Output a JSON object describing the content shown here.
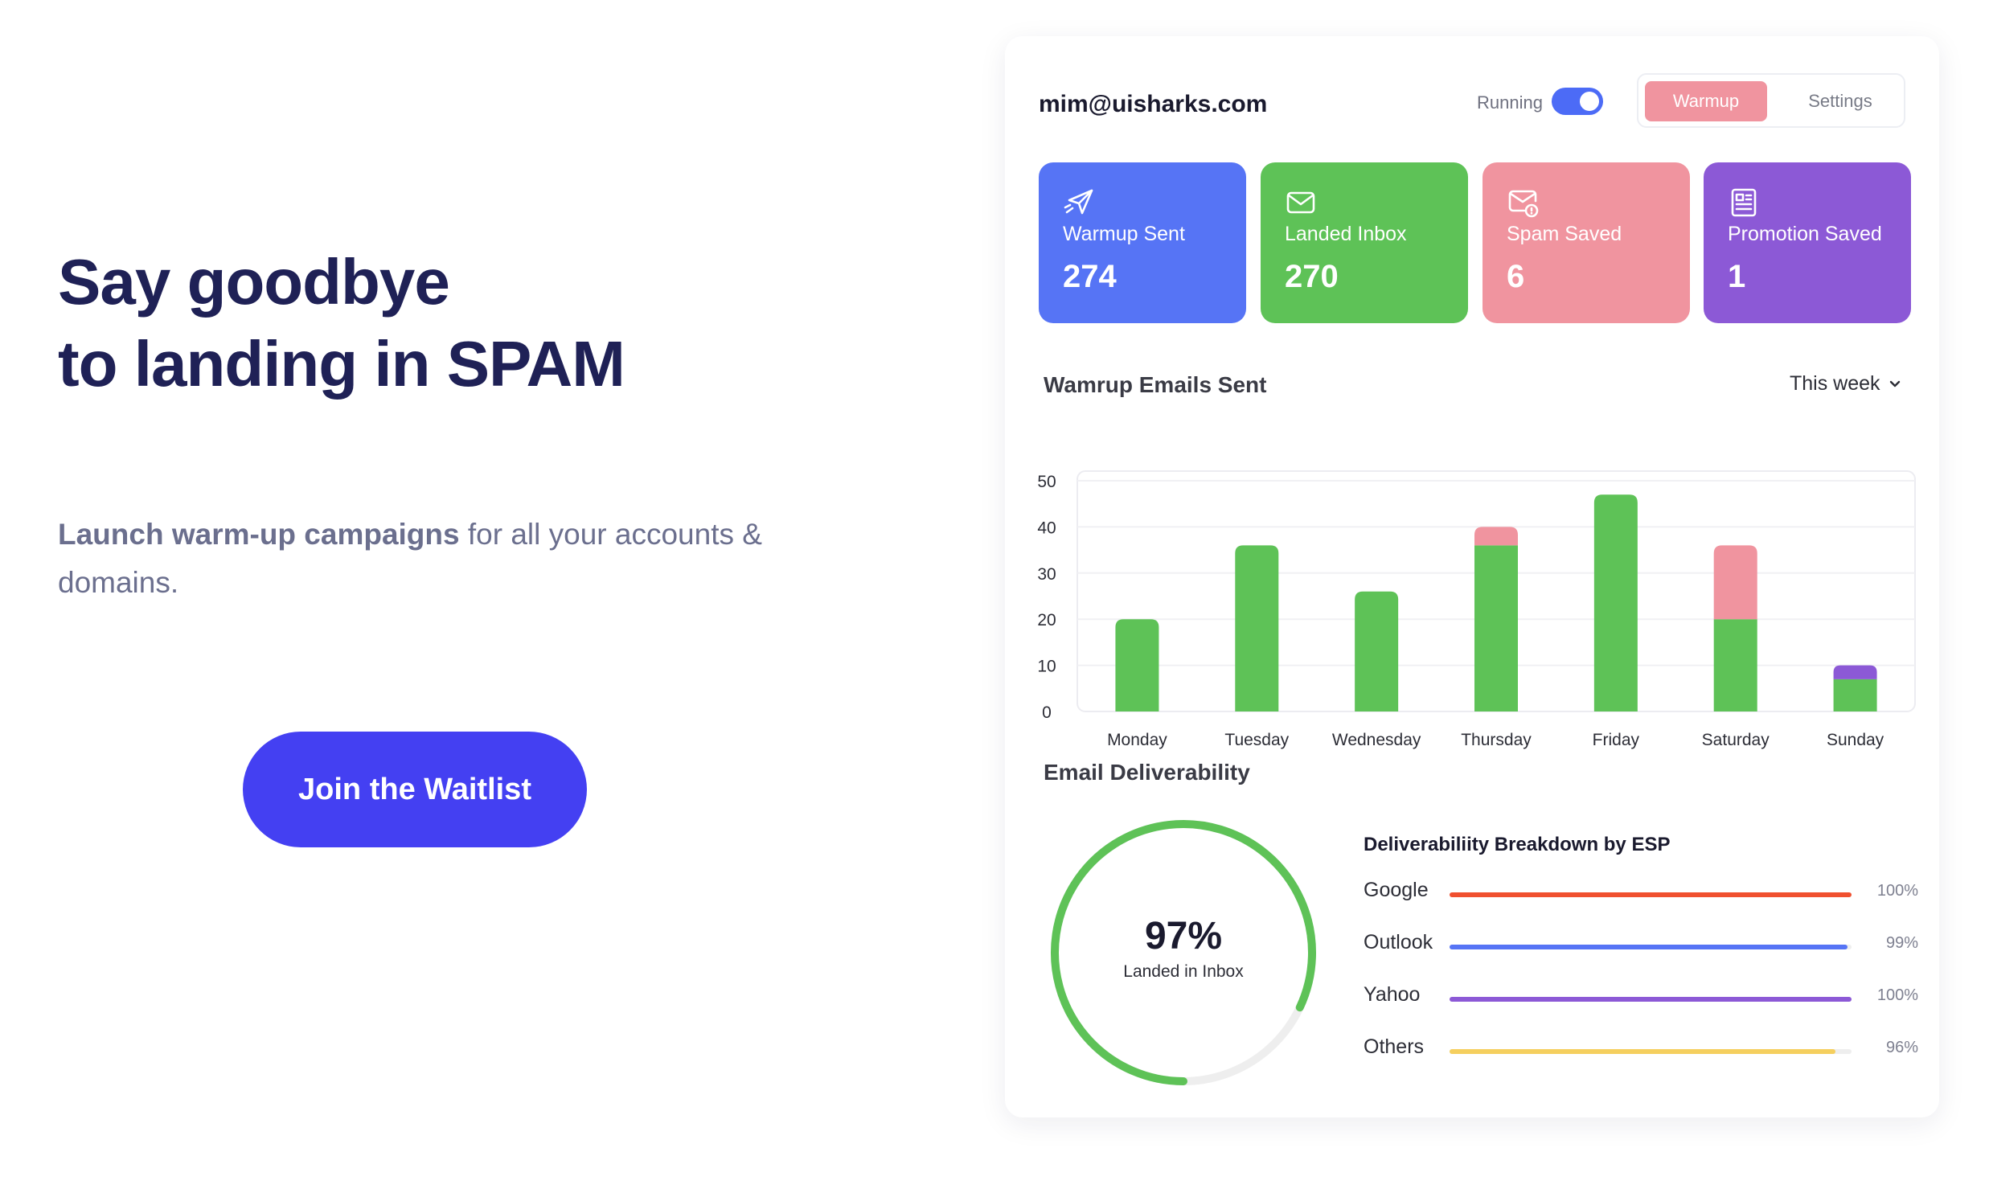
{
  "hero": {
    "title_line1": "Say goodbye",
    "title_line2": "to landing in SPAM",
    "subtitle_bold": "Launch warm-up campaigns",
    "subtitle_rest": " for all your accounts & domains.",
    "cta_label": "Join the Waitlist"
  },
  "dashboard": {
    "account_email": "mim@uisharks.com",
    "status_label": "Running",
    "status_on": true,
    "tabs": [
      {
        "label": "Warmup",
        "active": true
      },
      {
        "label": "Settings",
        "active": false
      }
    ],
    "stats": [
      {
        "label": "Warmup Sent",
        "value": "274",
        "icon": "paper-plane-icon",
        "color": "#5674f5"
      },
      {
        "label": "Landed Inbox",
        "value": "270",
        "icon": "envelope-icon",
        "color": "#5ec257"
      },
      {
        "label": "Spam Saved",
        "value": "6",
        "icon": "envelope-alert-icon",
        "color": "#f0949f"
      },
      {
        "label": "Promotion Saved",
        "value": "1",
        "icon": "newspaper-icon",
        "color": "#8c59d6"
      }
    ],
    "chart_section_title": "Wamrup Emails Sent",
    "period_selector": "This week",
    "deliverability_title": "Email Deliverability",
    "inbox_rate": "97%",
    "inbox_rate_value": 0.97,
    "inbox_label": "Landed in Inbox",
    "esp_title": "Deliverabiliity Breakdown by ESP",
    "esp": [
      {
        "name": "Google",
        "percent": "100%",
        "value": 100,
        "color": "#f0502f"
      },
      {
        "name": "Outlook",
        "percent": "99%",
        "value": 99,
        "color": "#5674f5"
      },
      {
        "name": "Yahoo",
        "percent": "100%",
        "value": 100,
        "color": "#8c59d6"
      },
      {
        "name": "Others",
        "percent": "96%",
        "value": 96,
        "color": "#f5cf5e"
      }
    ]
  },
  "chart_data": {
    "type": "bar",
    "stacked": true,
    "categories": [
      "Monday",
      "Tuesday",
      "Wednesday",
      "Thursday",
      "Friday",
      "Saturday",
      "Sunday"
    ],
    "series": [
      {
        "values": [
          20,
          36,
          26,
          36,
          47,
          20,
          7
        ],
        "color": "#5ec257"
      },
      {
        "values": [
          0,
          0,
          0,
          4,
          0,
          16,
          0
        ],
        "color": "#f0949f"
      },
      {
        "values": [
          0,
          0,
          0,
          0,
          0,
          0,
          3
        ],
        "color": "#8c59d6"
      }
    ],
    "yticks": [
      0,
      10,
      20,
      30,
      40,
      50
    ],
    "ylim": [
      0,
      50
    ],
    "grid": true
  }
}
